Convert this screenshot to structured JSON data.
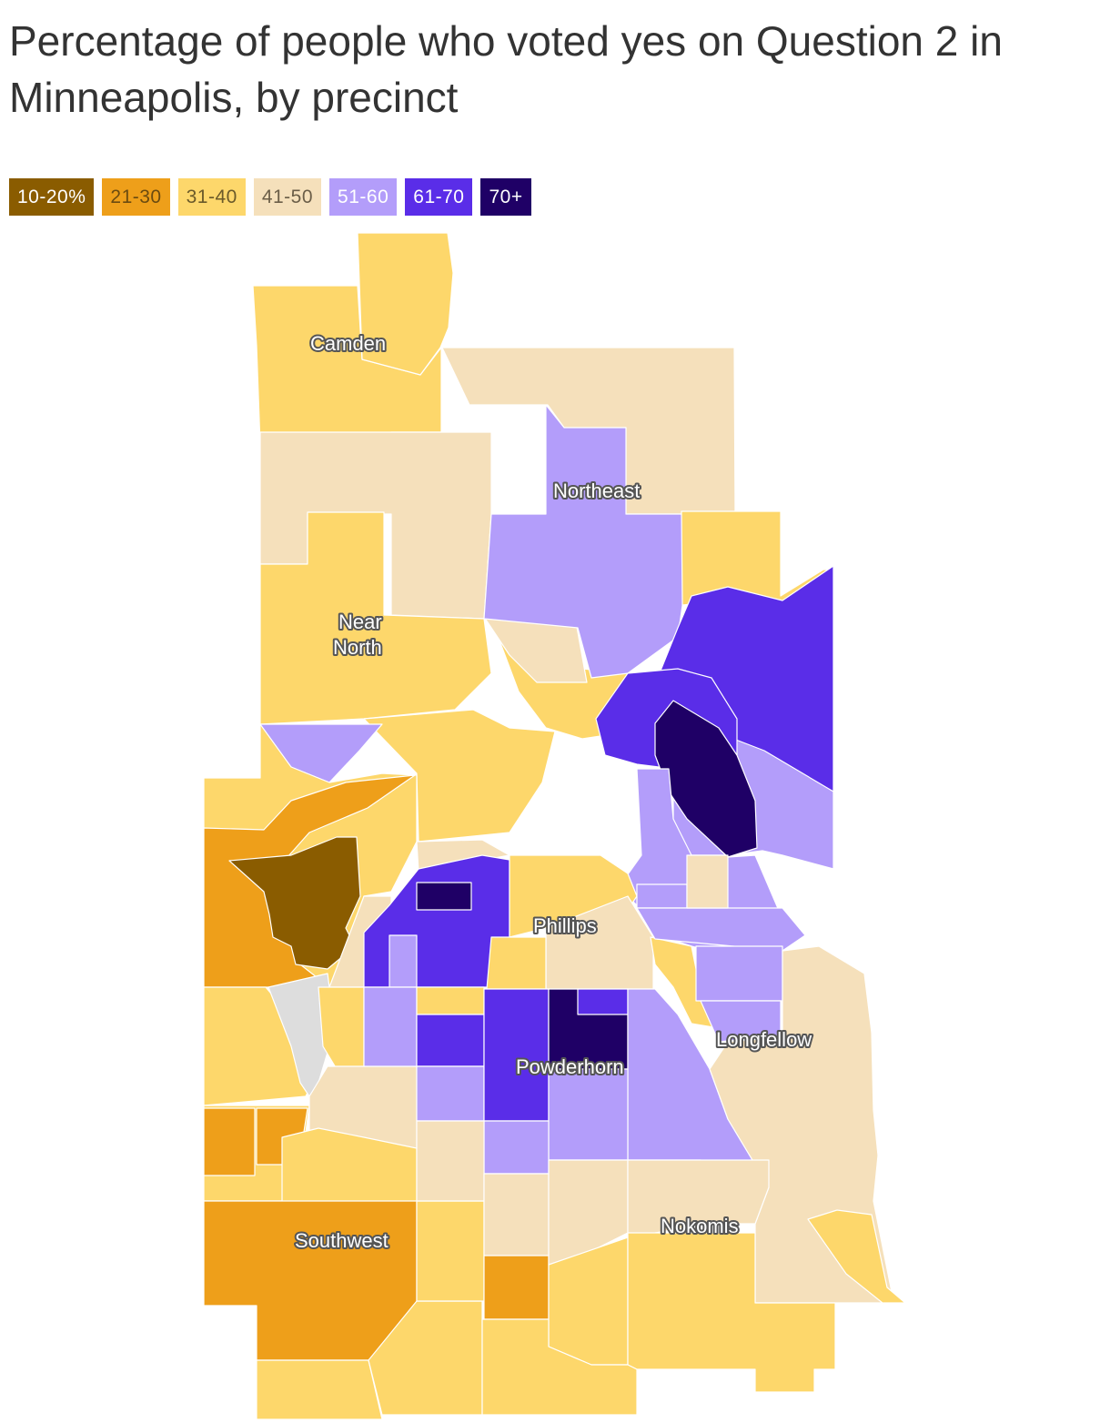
{
  "title": "Percentage of people who voted yes on Question 2 in Minneapolis, by precinct",
  "legend": [
    {
      "label": "10-20%",
      "color": "#8a5c00",
      "text_color": "#ffffff"
    },
    {
      "label": "21-30",
      "color": "#ee9f1a",
      "text_color": "#6b4b10"
    },
    {
      "label": "31-40",
      "color": "#fdd76b",
      "text_color": "#6b5a2a"
    },
    {
      "label": "41-50",
      "color": "#f5e0bb",
      "text_color": "#6b5e48"
    },
    {
      "label": "51-60",
      "color": "#b39dfa",
      "text_color": "#ffffff"
    },
    {
      "label": "61-70",
      "color": "#5a2de8",
      "text_color": "#ffffff"
    },
    {
      "label": "70+",
      "color": "#1f0066",
      "text_color": "#ffffff"
    }
  ],
  "no_data_color": "#dddddd",
  "area_labels": {
    "camden": "Camden",
    "northeast": "Northeast",
    "near_north_1": "Near",
    "near_north_2": "North",
    "phillips": "Phillips",
    "longfellow": "Longfellow",
    "powderhorn": "Powderhorn",
    "nokomis": "Nokomis",
    "southwest": "Southwest"
  }
}
